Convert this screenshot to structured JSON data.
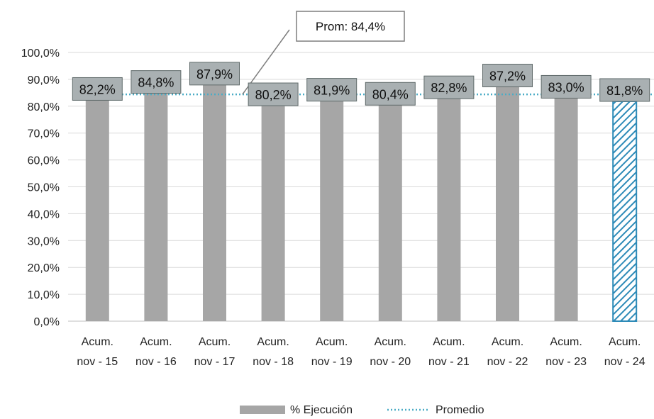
{
  "chart_data": {
    "type": "bar",
    "categories": [
      [
        "Acum.",
        "nov - 15"
      ],
      [
        "Acum.",
        "nov - 16"
      ],
      [
        "Acum.",
        "nov - 17"
      ],
      [
        "Acum.",
        "nov - 18"
      ],
      [
        "Acum.",
        "nov - 19"
      ],
      [
        "Acum.",
        "nov - 20"
      ],
      [
        "Acum.",
        "nov - 21"
      ],
      [
        "Acum.",
        "nov - 22"
      ],
      [
        "Acum.",
        "nov - 23"
      ],
      [
        "Acum.",
        "nov - 24"
      ]
    ],
    "series": [
      {
        "name": "% Ejecución",
        "values": [
          82.2,
          84.8,
          87.9,
          80.2,
          81.9,
          80.4,
          82.8,
          87.2,
          83.0,
          81.8
        ],
        "labels": [
          "82,2%",
          "84,8%",
          "87,9%",
          "80,2%",
          "81,9%",
          "80,4%",
          "82,8%",
          "87,2%",
          "83,0%",
          "81,8%"
        ],
        "highlight_last": true
      },
      {
        "name": "Promedio",
        "value": 84.4,
        "style": "dotted-line"
      }
    ],
    "average_callout": "Prom: 84,4%",
    "yticks": [
      "0,0%",
      "10,0%",
      "20,0%",
      "30,0%",
      "40,0%",
      "50,0%",
      "60,0%",
      "70,0%",
      "80,0%",
      "90,0%",
      "100,0%"
    ],
    "ylim": [
      0,
      100
    ],
    "grid": true,
    "legend_position": "bottom",
    "colors": {
      "bar": "#a6a6a6",
      "highlight_stroke": "#2e8bb8",
      "average_line": "#4bacc6",
      "label_box": "#a9b0b2",
      "label_border": "#5f6a6a",
      "grid": "#d9d9d9"
    }
  }
}
